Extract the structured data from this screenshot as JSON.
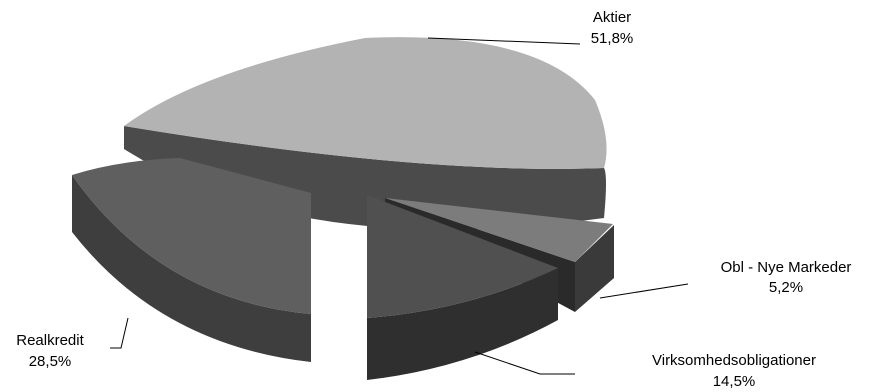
{
  "chart_data": {
    "type": "pie",
    "style": "3d-exploded",
    "slices": [
      {
        "label": "Aktier",
        "pct_label": "51,8%",
        "value": 51.8,
        "top_color": "#b3b3b3",
        "side_color": "#4b4b4b"
      },
      {
        "label": "Obl - Nye Markeder",
        "pct_label": "5,2%",
        "value": 5.2,
        "top_color": "#7c7c7c",
        "side_color": "#3a3a3a"
      },
      {
        "label": "Virksomhedsobligationer",
        "pct_label": "14,5%",
        "value": 14.5,
        "top_color": "#505050",
        "side_color": "#2f2f2f"
      },
      {
        "label": "Realkredit",
        "pct_label": "28,5%",
        "value": 28.5,
        "top_color": "#5f5f5f",
        "side_color": "#3e3e3e"
      }
    ]
  }
}
